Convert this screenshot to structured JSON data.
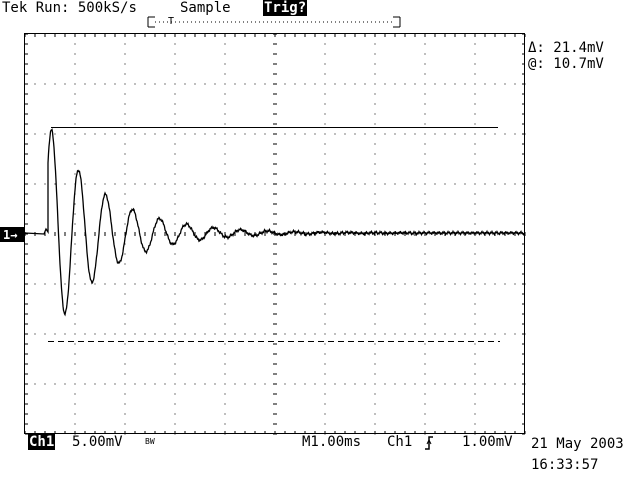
{
  "header": {
    "brand": "Tek",
    "run_status": "Run: 500kS/s",
    "acq_mode": "Sample",
    "trigger_status": "Trig?"
  },
  "cursor_readout": {
    "delta": "Δ: 21.4mV",
    "at": "@: 10.7mV"
  },
  "channel_marker": "1→",
  "footer": {
    "channel": "Ch1",
    "volts_per_div": "5.00mV",
    "bw_limit": "BW",
    "timebase": "M1.00ms",
    "trig_source": "Ch1",
    "trig_slope_icon": "rising-edge-icon",
    "trig_level": "1.00mV",
    "date": "21 May 2003",
    "time": "16:33:57"
  },
  "colors": {
    "background": "#ffffff",
    "trace": "#000000"
  }
}
